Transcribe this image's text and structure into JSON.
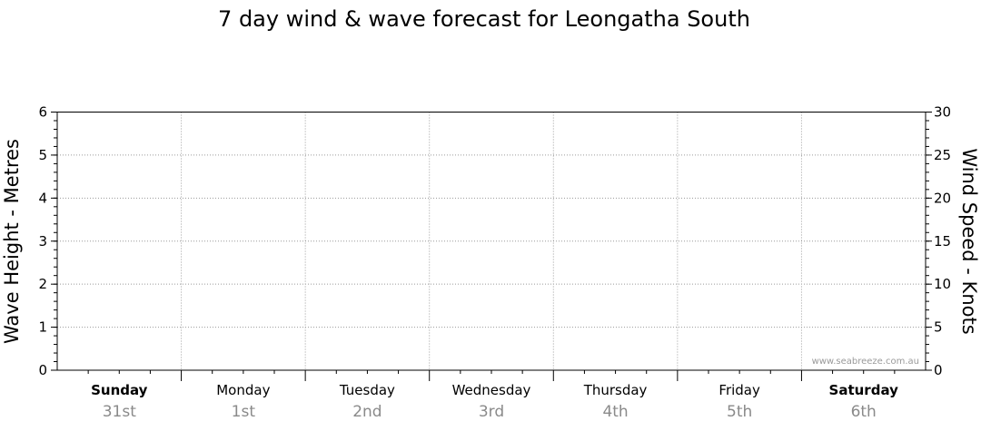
{
  "chart_data": {
    "type": "line",
    "title": "7 day wind & wave forecast for Leongatha South",
    "left_axis": {
      "label": "Wave Height - Metres",
      "ylim": [
        0,
        6
      ],
      "ticks": [
        "0",
        "1",
        "2",
        "3",
        "4",
        "5",
        "6"
      ]
    },
    "right_axis": {
      "label": "Wind Speed - Knots",
      "ylim": [
        0,
        30
      ],
      "ticks": [
        "0",
        "5",
        "10",
        "15",
        "20",
        "25",
        "30"
      ]
    },
    "days": [
      {
        "name": "Sunday",
        "date": "31st",
        "bold": true
      },
      {
        "name": "Monday",
        "date": "1st",
        "bold": false
      },
      {
        "name": "Tuesday",
        "date": "2nd",
        "bold": false
      },
      {
        "name": "Wednesday",
        "date": "3rd",
        "bold": false
      },
      {
        "name": "Thursday",
        "date": "4th",
        "bold": false
      },
      {
        "name": "Friday",
        "date": "5th",
        "bold": false
      },
      {
        "name": "Saturday",
        "date": "6th",
        "bold": true
      }
    ],
    "series": [],
    "grid": true,
    "watermark": "www.seabreeze.com.au"
  }
}
